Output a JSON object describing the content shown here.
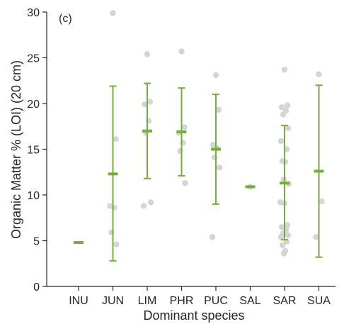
{
  "chart_data": {
    "type": "scatter",
    "panel_label": "(c)",
    "xlabel": "Dominant species",
    "ylabel": "Organic Matter % (LOI) (20 cm)",
    "ylim": [
      0,
      30
    ],
    "yticks": [
      0,
      5,
      10,
      15,
      20,
      25,
      30
    ],
    "categories": [
      "INU",
      "JUN",
      "LIM",
      "PHR",
      "PUC",
      "SAL",
      "SAR",
      "SUA"
    ],
    "summary": [
      {
        "category": "INU",
        "mean": 4.8,
        "lower": 4.8,
        "upper": 4.8
      },
      {
        "category": "JUN",
        "mean": 12.3,
        "lower": 2.8,
        "upper": 21.9
      },
      {
        "category": "LIM",
        "mean": 17.0,
        "lower": 11.8,
        "upper": 22.2
      },
      {
        "category": "PHR",
        "mean": 16.9,
        "lower": 12.1,
        "upper": 21.7
      },
      {
        "category": "PUC",
        "mean": 15.0,
        "lower": 9.0,
        "upper": 21.0
      },
      {
        "category": "SAL",
        "mean": 10.9,
        "lower": 10.9,
        "upper": 10.9
      },
      {
        "category": "SAR",
        "mean": 11.3,
        "lower": 5.1,
        "upper": 17.6
      },
      {
        "category": "SUA",
        "mean": 12.6,
        "lower": 3.2,
        "upper": 22.0
      }
    ],
    "points": [
      {
        "category": "JUN",
        "values": [
          29.9,
          16.1,
          8.8,
          8.6,
          5.9,
          4.6
        ]
      },
      {
        "category": "LIM",
        "values": [
          25.4,
          20.2,
          19.9,
          18.1,
          16.8,
          9.2,
          8.8
        ]
      },
      {
        "category": "PHR",
        "values": [
          25.7,
          17.4,
          16.8,
          15.7,
          14.8,
          11.3
        ]
      },
      {
        "category": "PUC",
        "values": [
          23.1,
          19.3,
          15.5,
          15.1,
          14.1,
          13.0,
          5.4
        ]
      },
      {
        "category": "SAL",
        "values": [
          10.9
        ]
      },
      {
        "category": "SAR",
        "values": [
          23.7,
          19.8,
          19.6,
          19.2,
          18.8,
          17.3,
          15.9,
          15.0,
          13.7,
          13.6,
          11.7,
          11.2,
          9.2,
          9.1,
          6.7,
          6.5,
          6.2,
          5.8,
          5.6,
          5.4,
          4.9,
          4.5,
          3.9,
          3.6
        ]
      },
      {
        "category": "SUA",
        "values": [
          23.2,
          9.3,
          5.4
        ]
      }
    ],
    "colors": {
      "summary": "#77ad3a",
      "points": "#d3d6d9",
      "axis": "#262626"
    }
  }
}
